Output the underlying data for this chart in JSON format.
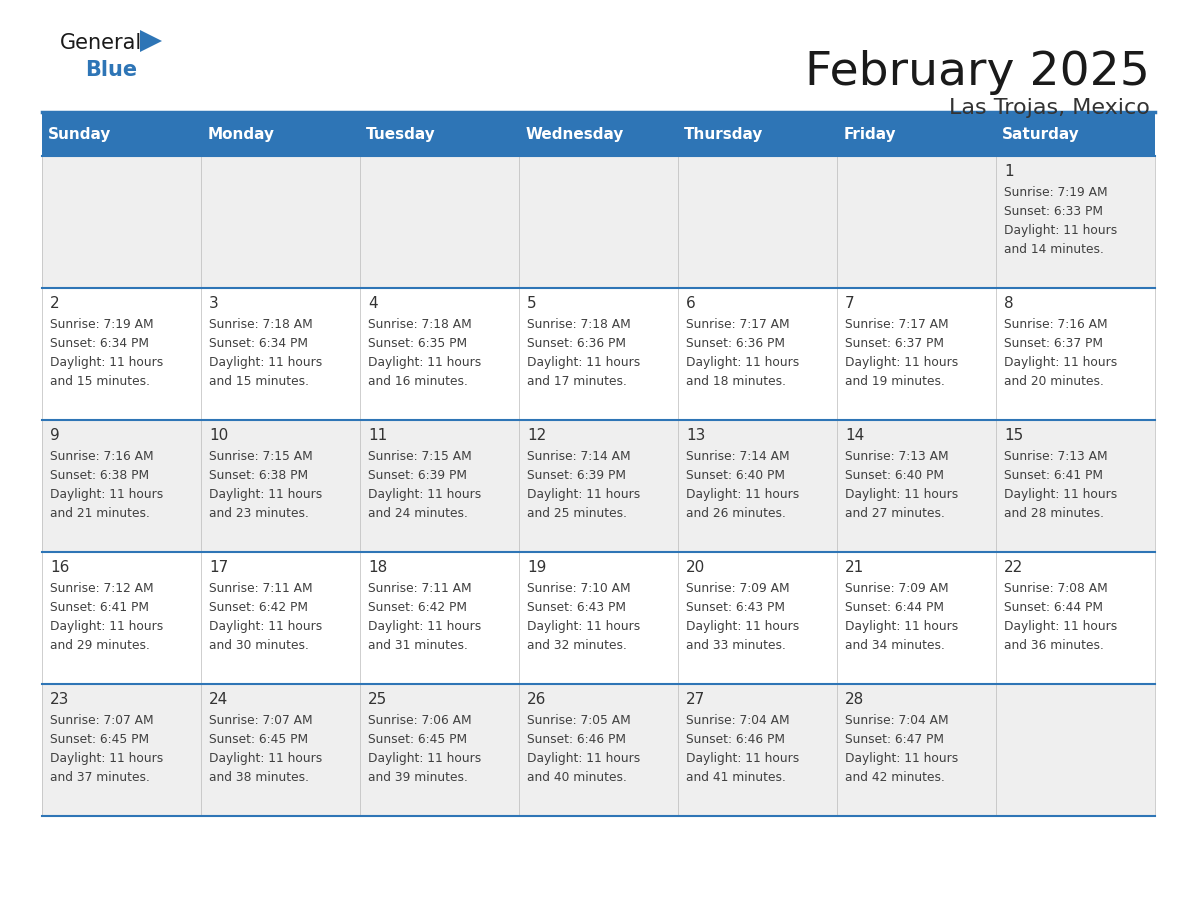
{
  "title": "February 2025",
  "subtitle": "Las Trojas, Mexico",
  "header_color": "#2E75B6",
  "header_text_color": "#FFFFFF",
  "bg_odd": "#EFEFEF",
  "bg_even": "#FFFFFF",
  "day_headers": [
    "Sunday",
    "Monday",
    "Tuesday",
    "Wednesday",
    "Thursday",
    "Friday",
    "Saturday"
  ],
  "days": [
    {
      "day": 1,
      "col": 6,
      "row": 0,
      "sunrise": "7:19 AM",
      "sunset": "6:33 PM",
      "daylight_hrs": 11,
      "daylight_min": 14
    },
    {
      "day": 2,
      "col": 0,
      "row": 1,
      "sunrise": "7:19 AM",
      "sunset": "6:34 PM",
      "daylight_hrs": 11,
      "daylight_min": 15
    },
    {
      "day": 3,
      "col": 1,
      "row": 1,
      "sunrise": "7:18 AM",
      "sunset": "6:34 PM",
      "daylight_hrs": 11,
      "daylight_min": 15
    },
    {
      "day": 4,
      "col": 2,
      "row": 1,
      "sunrise": "7:18 AM",
      "sunset": "6:35 PM",
      "daylight_hrs": 11,
      "daylight_min": 16
    },
    {
      "day": 5,
      "col": 3,
      "row": 1,
      "sunrise": "7:18 AM",
      "sunset": "6:36 PM",
      "daylight_hrs": 11,
      "daylight_min": 17
    },
    {
      "day": 6,
      "col": 4,
      "row": 1,
      "sunrise": "7:17 AM",
      "sunset": "6:36 PM",
      "daylight_hrs": 11,
      "daylight_min": 18
    },
    {
      "day": 7,
      "col": 5,
      "row": 1,
      "sunrise": "7:17 AM",
      "sunset": "6:37 PM",
      "daylight_hrs": 11,
      "daylight_min": 19
    },
    {
      "day": 8,
      "col": 6,
      "row": 1,
      "sunrise": "7:16 AM",
      "sunset": "6:37 PM",
      "daylight_hrs": 11,
      "daylight_min": 20
    },
    {
      "day": 9,
      "col": 0,
      "row": 2,
      "sunrise": "7:16 AM",
      "sunset": "6:38 PM",
      "daylight_hrs": 11,
      "daylight_min": 21
    },
    {
      "day": 10,
      "col": 1,
      "row": 2,
      "sunrise": "7:15 AM",
      "sunset": "6:38 PM",
      "daylight_hrs": 11,
      "daylight_min": 23
    },
    {
      "day": 11,
      "col": 2,
      "row": 2,
      "sunrise": "7:15 AM",
      "sunset": "6:39 PM",
      "daylight_hrs": 11,
      "daylight_min": 24
    },
    {
      "day": 12,
      "col": 3,
      "row": 2,
      "sunrise": "7:14 AM",
      "sunset": "6:39 PM",
      "daylight_hrs": 11,
      "daylight_min": 25
    },
    {
      "day": 13,
      "col": 4,
      "row": 2,
      "sunrise": "7:14 AM",
      "sunset": "6:40 PM",
      "daylight_hrs": 11,
      "daylight_min": 26
    },
    {
      "day": 14,
      "col": 5,
      "row": 2,
      "sunrise": "7:13 AM",
      "sunset": "6:40 PM",
      "daylight_hrs": 11,
      "daylight_min": 27
    },
    {
      "day": 15,
      "col": 6,
      "row": 2,
      "sunrise": "7:13 AM",
      "sunset": "6:41 PM",
      "daylight_hrs": 11,
      "daylight_min": 28
    },
    {
      "day": 16,
      "col": 0,
      "row": 3,
      "sunrise": "7:12 AM",
      "sunset": "6:41 PM",
      "daylight_hrs": 11,
      "daylight_min": 29
    },
    {
      "day": 17,
      "col": 1,
      "row": 3,
      "sunrise": "7:11 AM",
      "sunset": "6:42 PM",
      "daylight_hrs": 11,
      "daylight_min": 30
    },
    {
      "day": 18,
      "col": 2,
      "row": 3,
      "sunrise": "7:11 AM",
      "sunset": "6:42 PM",
      "daylight_hrs": 11,
      "daylight_min": 31
    },
    {
      "day": 19,
      "col": 3,
      "row": 3,
      "sunrise": "7:10 AM",
      "sunset": "6:43 PM",
      "daylight_hrs": 11,
      "daylight_min": 32
    },
    {
      "day": 20,
      "col": 4,
      "row": 3,
      "sunrise": "7:09 AM",
      "sunset": "6:43 PM",
      "daylight_hrs": 11,
      "daylight_min": 33
    },
    {
      "day": 21,
      "col": 5,
      "row": 3,
      "sunrise": "7:09 AM",
      "sunset": "6:44 PM",
      "daylight_hrs": 11,
      "daylight_min": 34
    },
    {
      "day": 22,
      "col": 6,
      "row": 3,
      "sunrise": "7:08 AM",
      "sunset": "6:44 PM",
      "daylight_hrs": 11,
      "daylight_min": 36
    },
    {
      "day": 23,
      "col": 0,
      "row": 4,
      "sunrise": "7:07 AM",
      "sunset": "6:45 PM",
      "daylight_hrs": 11,
      "daylight_min": 37
    },
    {
      "day": 24,
      "col": 1,
      "row": 4,
      "sunrise": "7:07 AM",
      "sunset": "6:45 PM",
      "daylight_hrs": 11,
      "daylight_min": 38
    },
    {
      "day": 25,
      "col": 2,
      "row": 4,
      "sunrise": "7:06 AM",
      "sunset": "6:45 PM",
      "daylight_hrs": 11,
      "daylight_min": 39
    },
    {
      "day": 26,
      "col": 3,
      "row": 4,
      "sunrise": "7:05 AM",
      "sunset": "6:46 PM",
      "daylight_hrs": 11,
      "daylight_min": 40
    },
    {
      "day": 27,
      "col": 4,
      "row": 4,
      "sunrise": "7:04 AM",
      "sunset": "6:46 PM",
      "daylight_hrs": 11,
      "daylight_min": 41
    },
    {
      "day": 28,
      "col": 5,
      "row": 4,
      "sunrise": "7:04 AM",
      "sunset": "6:47 PM",
      "daylight_hrs": 11,
      "daylight_min": 42
    }
  ],
  "num_rows": 5,
  "num_cols": 7,
  "line_color": "#2E75B6",
  "cell_text_color": "#404040",
  "day_num_color": "#333333"
}
